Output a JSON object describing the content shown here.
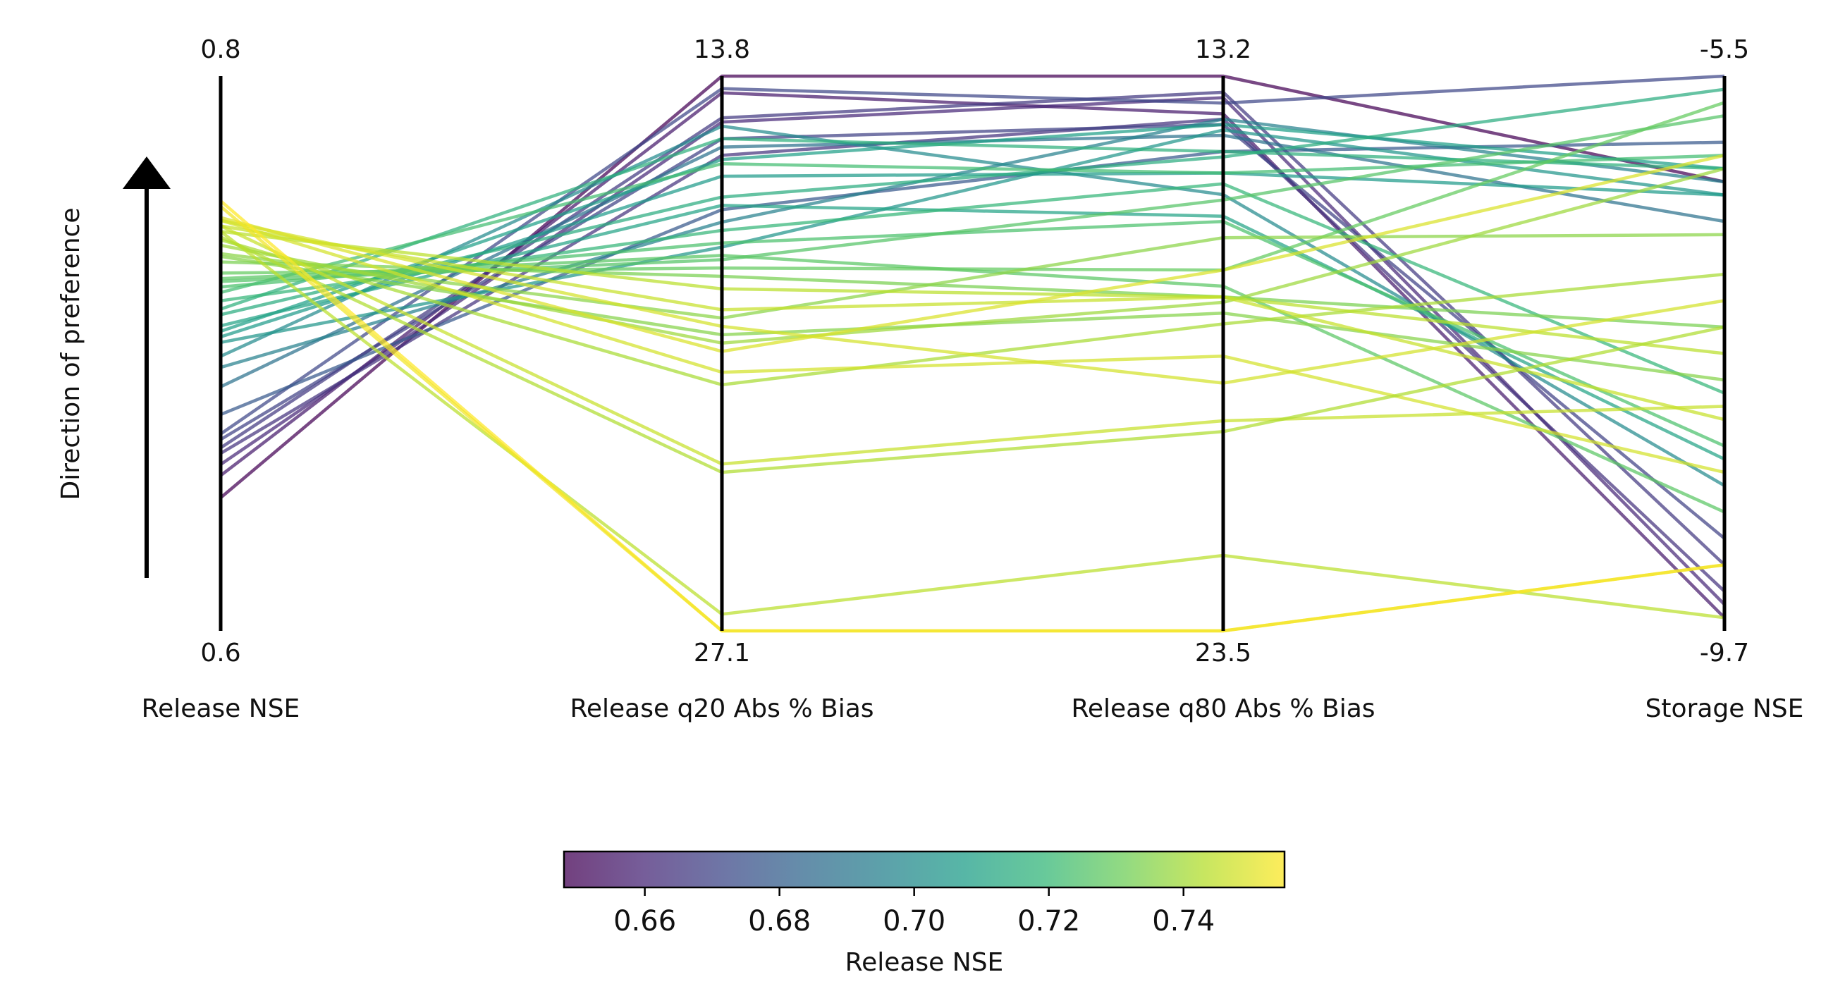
{
  "chart_data": {
    "type": "parallel-coordinates",
    "title": "",
    "ylabel": "Direction of preference",
    "axes": [
      {
        "name": "Release NSE",
        "top": "0.8",
        "bottom": "0.6",
        "top_value": 0.8,
        "bottom_value": 0.6
      },
      {
        "name": "Release q20 Abs % Bias",
        "top": "13.8",
        "bottom": "27.1",
        "top_value": 13.8,
        "bottom_value": 27.1
      },
      {
        "name": "Release q80 Abs % Bias",
        "top": "13.2",
        "bottom": "23.5",
        "top_value": 13.2,
        "bottom_value": 23.5
      },
      {
        "name": "Storage NSE",
        "top": "-5.5",
        "bottom": "-9.7",
        "top_value": -5.5,
        "bottom_value": -9.7
      }
    ],
    "colorbar": {
      "label": "Release NSE",
      "min": 0.648,
      "max": 0.755,
      "ticks": [
        {
          "value": 0.66,
          "label": "0.66"
        },
        {
          "value": 0.68,
          "label": "0.68"
        },
        {
          "value": 0.7,
          "label": "0.70"
        },
        {
          "value": 0.72,
          "label": "0.72"
        },
        {
          "value": 0.74,
          "label": "0.74"
        }
      ],
      "colormap": [
        "#440154",
        "#482878",
        "#3e4989",
        "#31688e",
        "#26828e",
        "#1f9e89",
        "#35b779",
        "#6ece58",
        "#b5de2b",
        "#fde725"
      ]
    },
    "solutions": [
      [
        0.648,
        13.8,
        13.2,
        -6.3
      ],
      [
        0.656,
        14.2,
        13.9,
        -9.6
      ],
      [
        0.66,
        14.9,
        13.6,
        -9.5
      ],
      [
        0.664,
        15.7,
        14.0,
        -9.4
      ],
      [
        0.666,
        14.8,
        13.5,
        -9.2
      ],
      [
        0.669,
        15.3,
        14.1,
        -9.0
      ],
      [
        0.671,
        14.1,
        13.7,
        -5.5
      ],
      [
        0.678,
        17.0,
        14.6,
        -6.0
      ],
      [
        0.688,
        15.5,
        14.3,
        -6.6
      ],
      [
        0.695,
        17.3,
        14.0,
        -6.3
      ],
      [
        0.699,
        15.0,
        15.4,
        -8.6
      ],
      [
        0.704,
        17.9,
        14.2,
        -6.4
      ],
      [
        0.706,
        16.2,
        15.0,
        -6.4
      ],
      [
        0.708,
        15.8,
        14.1,
        -6.2
      ],
      [
        0.71,
        16.9,
        15.8,
        -8.4
      ],
      [
        0.714,
        16.7,
        14.7,
        -5.6
      ],
      [
        0.716,
        15.3,
        14.6,
        -6.2
      ],
      [
        0.719,
        17.5,
        15.2,
        -7.9
      ],
      [
        0.722,
        15.9,
        15.0,
        -6.1
      ],
      [
        0.724,
        17.8,
        15.9,
        -8.3
      ],
      [
        0.726,
        18.2,
        15.5,
        -5.8
      ],
      [
        0.727,
        18.1,
        17.1,
        -8.8
      ],
      [
        0.729,
        18.4,
        16.8,
        -5.7
      ],
      [
        0.733,
        18.6,
        17.3,
        -7.4
      ],
      [
        0.735,
        20.0,
        17.6,
        -7.8
      ],
      [
        0.736,
        19.6,
        16.2,
        -6.7
      ],
      [
        0.739,
        20.2,
        17.4,
        -6.2
      ],
      [
        0.741,
        21.2,
        17.8,
        -7.0
      ],
      [
        0.744,
        18.9,
        17.3,
        -7.6
      ],
      [
        0.746,
        19.4,
        17.3,
        -8.1
      ],
      [
        0.748,
        19.8,
        18.9,
        -7.2
      ],
      [
        0.749,
        20.4,
        16.8,
        -6.1
      ],
      [
        0.748,
        20.9,
        18.4,
        -8.5
      ],
      [
        0.746,
        23.1,
        19.6,
        -8.0
      ],
      [
        0.742,
        23.3,
        19.8,
        -7.4
      ],
      [
        0.744,
        26.7,
        22.1,
        -9.6
      ],
      [
        0.755,
        27.1,
        23.5,
        -9.2
      ],
      [
        0.753,
        27.1,
        23.5,
        -9.2
      ]
    ]
  }
}
